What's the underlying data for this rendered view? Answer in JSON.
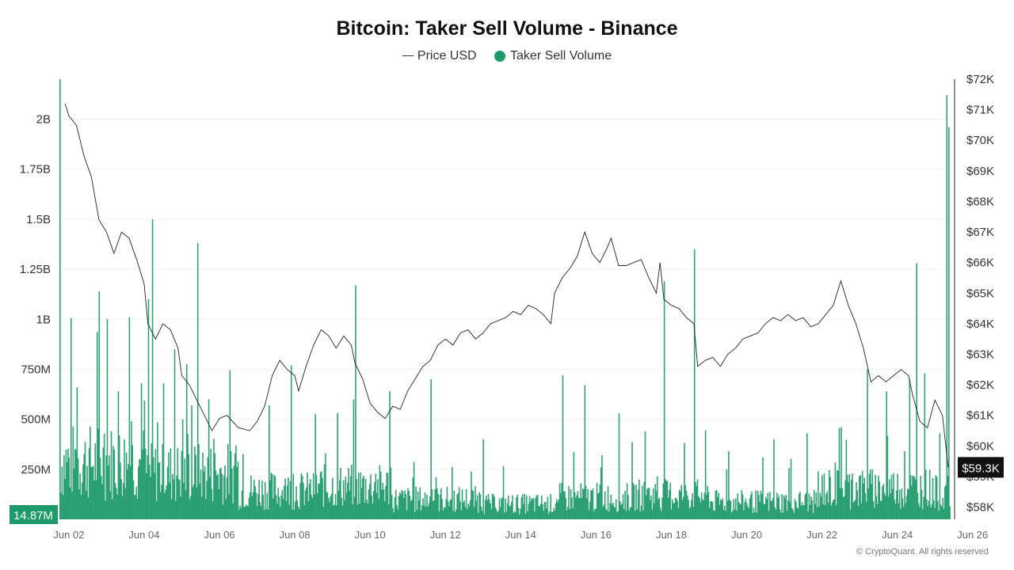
{
  "chart_data": {
    "type": "bar+line",
    "title": "Bitcoin: Taker Sell Volume - Binance",
    "legend": [
      {
        "name": "Price USD",
        "kind": "line",
        "color": "#333333"
      },
      {
        "name": "Taker Sell Volume",
        "kind": "dot",
        "color": "#1e9a6a"
      }
    ],
    "y_left": {
      "ticks": [
        "250M",
        "500M",
        "750M",
        "1B",
        "1.25B",
        "1.5B",
        "1.75B",
        "2B"
      ],
      "tick_values": [
        250,
        500,
        750,
        1000,
        1250,
        1500,
        1750,
        2000
      ],
      "unit": "millions",
      "ylim": [
        0,
        2200
      ],
      "min_label": "14.87M"
    },
    "y_right": {
      "ticks": [
        "$58K",
        "$59K",
        "$60K",
        "$61K",
        "$62K",
        "$63K",
        "$64K",
        "$65K",
        "$66K",
        "$67K",
        "$68K",
        "$69K",
        "$70K",
        "$71K",
        "$72K"
      ],
      "tick_values": [
        58,
        59,
        60,
        61,
        62,
        63,
        64,
        65,
        66,
        67,
        68,
        69,
        70,
        71,
        72
      ],
      "unit": "thousands USD",
      "ylim": [
        57.6,
        72
      ],
      "last_label": "$59.3K"
    },
    "x_ticks": [
      "Jun 02",
      "Jun 04",
      "Jun 06",
      "Jun 08",
      "Jun 10",
      "Jun 12",
      "Jun 14",
      "Jun 16",
      "Jun 18",
      "Jun 20",
      "Jun 22",
      "Jun 24",
      "Jun 26"
    ],
    "x_tick_days": [
      2,
      4,
      6,
      8,
      10,
      12,
      14,
      16,
      18,
      20,
      22,
      24,
      26
    ],
    "x_range_days": [
      1.75,
      25.5
    ],
    "price_series": [
      [
        1.9,
        71.2
      ],
      [
        2.0,
        70.8
      ],
      [
        2.2,
        70.5
      ],
      [
        2.4,
        69.5
      ],
      [
        2.6,
        68.8
      ],
      [
        2.8,
        67.4
      ],
      [
        3.0,
        67.0
      ],
      [
        3.2,
        66.3
      ],
      [
        3.4,
        67.0
      ],
      [
        3.6,
        66.8
      ],
      [
        3.8,
        66.1
      ],
      [
        4.0,
        65.3
      ],
      [
        4.1,
        64.0
      ],
      [
        4.3,
        63.5
      ],
      [
        4.5,
        64.0
      ],
      [
        4.7,
        63.8
      ],
      [
        4.9,
        63.2
      ],
      [
        5.0,
        62.3
      ],
      [
        5.2,
        62.0
      ],
      [
        5.4,
        61.5
      ],
      [
        5.6,
        61.0
      ],
      [
        5.8,
        60.5
      ],
      [
        6.0,
        60.9
      ],
      [
        6.2,
        61.0
      ],
      [
        6.5,
        60.6
      ],
      [
        6.8,
        60.5
      ],
      [
        7.0,
        60.8
      ],
      [
        7.2,
        61.3
      ],
      [
        7.4,
        62.3
      ],
      [
        7.6,
        62.8
      ],
      [
        7.8,
        62.5
      ],
      [
        8.0,
        62.3
      ],
      [
        8.1,
        61.8
      ],
      [
        8.3,
        62.6
      ],
      [
        8.5,
        63.3
      ],
      [
        8.7,
        63.8
      ],
      [
        8.9,
        63.6
      ],
      [
        9.1,
        63.2
      ],
      [
        9.3,
        63.6
      ],
      [
        9.5,
        63.3
      ],
      [
        9.6,
        62.7
      ],
      [
        9.8,
        62.2
      ],
      [
        10.0,
        61.4
      ],
      [
        10.2,
        61.1
      ],
      [
        10.4,
        60.9
      ],
      [
        10.6,
        61.3
      ],
      [
        10.8,
        61.2
      ],
      [
        11.0,
        61.8
      ],
      [
        11.2,
        62.2
      ],
      [
        11.4,
        62.6
      ],
      [
        11.6,
        62.8
      ],
      [
        11.8,
        63.3
      ],
      [
        12.0,
        63.5
      ],
      [
        12.2,
        63.3
      ],
      [
        12.4,
        63.7
      ],
      [
        12.6,
        63.8
      ],
      [
        12.8,
        63.5
      ],
      [
        13.0,
        63.7
      ],
      [
        13.2,
        64.0
      ],
      [
        13.4,
        64.1
      ],
      [
        13.6,
        64.2
      ],
      [
        13.8,
        64.4
      ],
      [
        14.0,
        64.3
      ],
      [
        14.2,
        64.6
      ],
      [
        14.4,
        64.5
      ],
      [
        14.6,
        64.3
      ],
      [
        14.8,
        64.0
      ],
      [
        14.9,
        65.0
      ],
      [
        15.1,
        65.5
      ],
      [
        15.3,
        65.8
      ],
      [
        15.5,
        66.2
      ],
      [
        15.7,
        67.0
      ],
      [
        15.9,
        66.3
      ],
      [
        16.1,
        66.0
      ],
      [
        16.3,
        66.5
      ],
      [
        16.4,
        66.8
      ],
      [
        16.6,
        65.9
      ],
      [
        16.8,
        65.9
      ],
      [
        17.0,
        66.0
      ],
      [
        17.2,
        66.1
      ],
      [
        17.4,
        65.5
      ],
      [
        17.6,
        65.0
      ],
      [
        17.7,
        66.0
      ],
      [
        17.8,
        64.8
      ],
      [
        18.0,
        64.6
      ],
      [
        18.2,
        64.5
      ],
      [
        18.4,
        64.2
      ],
      [
        18.6,
        64.0
      ],
      [
        18.7,
        62.6
      ],
      [
        18.9,
        62.8
      ],
      [
        19.1,
        62.9
      ],
      [
        19.3,
        62.6
      ],
      [
        19.5,
        63.0
      ],
      [
        19.7,
        63.2
      ],
      [
        19.9,
        63.5
      ],
      [
        20.1,
        63.6
      ],
      [
        20.3,
        63.7
      ],
      [
        20.5,
        64.0
      ],
      [
        20.7,
        64.2
      ],
      [
        20.9,
        64.1
      ],
      [
        21.1,
        64.3
      ],
      [
        21.3,
        64.1
      ],
      [
        21.5,
        64.2
      ],
      [
        21.7,
        63.9
      ],
      [
        21.9,
        64.0
      ],
      [
        22.1,
        64.3
      ],
      [
        22.3,
        64.6
      ],
      [
        22.5,
        65.4
      ],
      [
        22.7,
        64.6
      ],
      [
        22.9,
        64.0
      ],
      [
        23.1,
        63.2
      ],
      [
        23.3,
        62.1
      ],
      [
        23.5,
        62.3
      ],
      [
        23.7,
        62.1
      ],
      [
        23.9,
        62.3
      ],
      [
        24.1,
        62.5
      ],
      [
        24.3,
        62.3
      ],
      [
        24.4,
        61.7
      ],
      [
        24.6,
        60.8
      ],
      [
        24.8,
        60.6
      ],
      [
        25.0,
        61.5
      ],
      [
        25.2,
        61.0
      ],
      [
        25.35,
        59.3
      ]
    ],
    "volume_spikes_millions": [
      [
        1.75,
        2200
      ],
      [
        2.2,
        660
      ],
      [
        2.8,
        1140
      ],
      [
        3.0,
        1000
      ],
      [
        3.3,
        640
      ],
      [
        3.6,
        1010
      ],
      [
        3.9,
        680
      ],
      [
        4.1,
        1100
      ],
      [
        4.2,
        1500
      ],
      [
        4.5,
        680
      ],
      [
        4.8,
        850
      ],
      [
        5.0,
        500
      ],
      [
        5.4,
        1380
      ],
      [
        5.7,
        600
      ],
      [
        6.4,
        330
      ],
      [
        7.3,
        570
      ],
      [
        7.9,
        770
      ],
      [
        8.8,
        330
      ],
      [
        9.6,
        1170
      ],
      [
        10.5,
        640
      ],
      [
        11.6,
        700
      ],
      [
        13.0,
        400
      ],
      [
        15.1,
        720
      ],
      [
        15.7,
        670
      ],
      [
        16.6,
        530
      ],
      [
        17.3,
        440
      ],
      [
        17.8,
        1190
      ],
      [
        18.6,
        1350
      ],
      [
        19.5,
        340
      ],
      [
        20.7,
        400
      ],
      [
        21.6,
        430
      ],
      [
        22.5,
        460
      ],
      [
        23.2,
        750
      ],
      [
        23.7,
        640
      ],
      [
        24.3,
        700
      ],
      [
        24.5,
        1280
      ],
      [
        24.7,
        730
      ],
      [
        25.1,
        430
      ],
      [
        25.3,
        2120
      ],
      [
        25.35,
        1960
      ]
    ]
  },
  "footer": "© CryptoQuant. All rights reserved"
}
